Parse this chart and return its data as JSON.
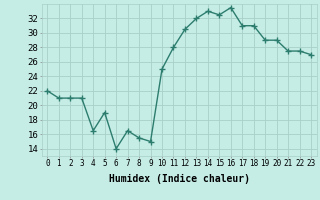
{
  "x": [
    0,
    1,
    2,
    3,
    4,
    5,
    6,
    7,
    8,
    9,
    10,
    11,
    12,
    13,
    14,
    15,
    16,
    17,
    18,
    19,
    20,
    21,
    22,
    23
  ],
  "y": [
    22,
    21,
    21,
    21,
    16.5,
    19,
    14,
    16.5,
    15.5,
    15,
    25,
    28,
    30.5,
    32,
    33,
    32.5,
    33.5,
    31,
    31,
    29,
    29,
    27.5,
    27.5,
    27
  ],
  "line_color": "#2d7d6e",
  "marker": "+",
  "marker_size": 4,
  "bg_color": "#c5ede6",
  "grid_color": "#a8cfc8",
  "xlabel": "Humidex (Indice chaleur)",
  "ylabel_ticks": [
    14,
    16,
    18,
    20,
    22,
    24,
    26,
    28,
    30,
    32
  ],
  "xlim": [
    -0.5,
    23.5
  ],
  "ylim": [
    13.0,
    34.0
  ],
  "xlabel_fontsize": 7,
  "xtick_fontsize": 5.5,
  "ytick_fontsize": 6.5,
  "line_width": 1.0
}
